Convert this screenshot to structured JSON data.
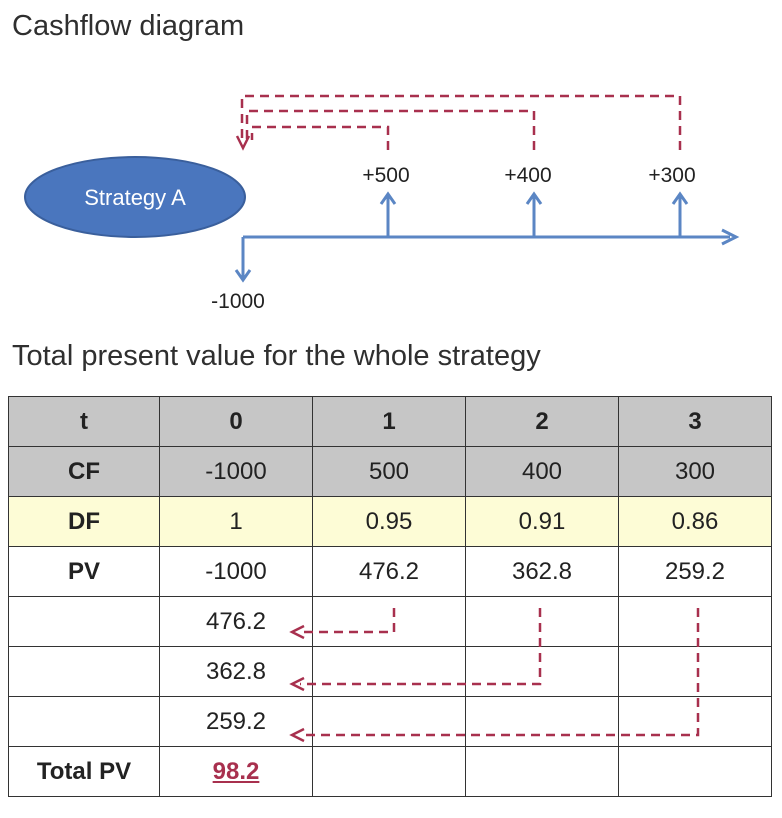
{
  "headings": {
    "diagram": "Cashflow diagram",
    "table": "Total present value for the whole strategy"
  },
  "diagram": {
    "strategy_label": "Strategy A",
    "outflow": "-1000",
    "inflows": [
      "+500",
      "+400",
      "+300"
    ]
  },
  "table": {
    "header": [
      "t",
      "0",
      "1",
      "2",
      "3"
    ],
    "cf": [
      "CF",
      "-1000",
      "500",
      "400",
      "300"
    ],
    "df": [
      "DF",
      "1",
      "0.95",
      "0.91",
      "0.86"
    ],
    "pv": [
      "PV",
      "-1000",
      "476.2",
      "362.8",
      "259.2"
    ],
    "moved": [
      "476.2",
      "362.8",
      "259.2"
    ],
    "total_label": "Total PV",
    "total_value": "98.2"
  },
  "colors": {
    "ellipse": "#4a76be",
    "axis": "#5b86c4",
    "dashed": "#a8304e",
    "header_bg": "#c6c6c6",
    "df_bg": "#fdfcd6"
  }
}
